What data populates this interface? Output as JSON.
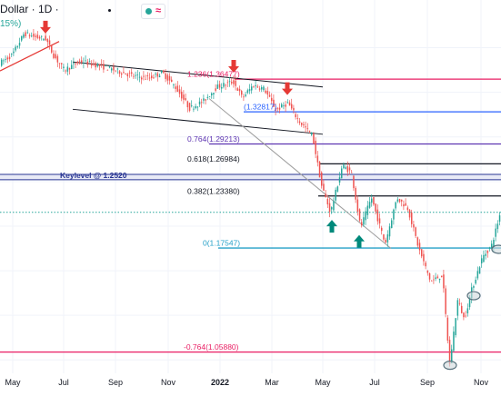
{
  "header": {
    "symbol_interval": "Dollar · 1D ·",
    "change_fragment": "15%)",
    "badge_icon": "wave-icon",
    "badge_symbol": "≈"
  },
  "chart_data": {
    "type": "candlestick",
    "x_axis_labels": [
      "May",
      "Jul",
      "Sep",
      "Nov",
      "2022",
      "Mar",
      "May",
      "Jul",
      "Sep",
      "Nov"
    ],
    "y_range": [
      1.035,
      1.425
    ],
    "price_path": [
      {
        "t": 0,
        "price": 1.382
      },
      {
        "t": 15,
        "price": 1.392
      },
      {
        "t": 28,
        "price": 1.416
      },
      {
        "t": 40,
        "price": 1.412
      },
      {
        "t": 52,
        "price": 1.41
      },
      {
        "t": 60,
        "price": 1.392
      },
      {
        "t": 72,
        "price": 1.375
      },
      {
        "t": 90,
        "price": 1.385
      },
      {
        "t": 110,
        "price": 1.38
      },
      {
        "t": 130,
        "price": 1.374
      },
      {
        "t": 150,
        "price": 1.368
      },
      {
        "t": 165,
        "price": 1.366
      },
      {
        "t": 180,
        "price": 1.372
      },
      {
        "t": 195,
        "price": 1.355
      },
      {
        "t": 210,
        "price": 1.332
      },
      {
        "t": 225,
        "price": 1.34
      },
      {
        "t": 240,
        "price": 1.356
      },
      {
        "t": 258,
        "price": 1.362
      },
      {
        "t": 268,
        "price": 1.344
      },
      {
        "t": 280,
        "price": 1.358
      },
      {
        "t": 292,
        "price": 1.354
      },
      {
        "t": 305,
        "price": 1.33
      },
      {
        "t": 318,
        "price": 1.338
      },
      {
        "t": 330,
        "price": 1.318
      },
      {
        "t": 345,
        "price": 1.302
      },
      {
        "t": 355,
        "price": 1.246
      },
      {
        "t": 365,
        "price": 1.215
      },
      {
        "t": 378,
        "price": 1.268
      },
      {
        "t": 388,
        "price": 1.26
      },
      {
        "t": 398,
        "price": 1.198
      },
      {
        "t": 410,
        "price": 1.232
      },
      {
        "t": 425,
        "price": 1.18
      },
      {
        "t": 438,
        "price": 1.232
      },
      {
        "t": 450,
        "price": 1.22
      },
      {
        "t": 462,
        "price": 1.175
      },
      {
        "t": 475,
        "price": 1.138
      },
      {
        "t": 488,
        "price": 1.145
      },
      {
        "t": 496,
        "price": 1.045
      },
      {
        "t": 505,
        "price": 1.118
      },
      {
        "t": 512,
        "price": 1.095
      },
      {
        "t": 520,
        "price": 1.128
      },
      {
        "t": 532,
        "price": 1.165
      },
      {
        "t": 542,
        "price": 1.178
      },
      {
        "t": 551,
        "price": 1.212
      }
    ],
    "fibonacci_levels": [
      {
        "label": "1.236(1.36477)",
        "value": 1.36477,
        "color": "#e91e63"
      },
      {
        "label": "(1.32817)",
        "value": 1.32817,
        "color": "#2962ff"
      },
      {
        "label": "0.764(1.29213)",
        "value": 1.29213,
        "color": "#5e35b1"
      },
      {
        "label": "0.618(1.26984)",
        "value": 1.26984,
        "color": "#131722"
      },
      {
        "label": "0.382(1.23380)",
        "value": 1.2338,
        "color": "#131722"
      },
      {
        "label": "0(1.17547)",
        "value": 1.17547,
        "color": "#26a0c8"
      },
      {
        "label": "-0.764(1.05880)",
        "value": 1.0588,
        "color": "#e91e63"
      }
    ],
    "keylevel": {
      "label": "Keylevel @ 1.2520",
      "value": 1.252,
      "band_upper": 1.258,
      "color": "#283593"
    },
    "dotted_level": {
      "value": 1.2155,
      "color": "#26a69a"
    },
    "channel_lines": [
      {
        "from": {
          "t": 80,
          "price": 1.384
        },
        "to": {
          "t": 355,
          "price": 1.356
        },
        "color": "#131722"
      },
      {
        "from": {
          "t": 80,
          "price": 1.331
        },
        "to": {
          "t": 355,
          "price": 1.303
        },
        "color": "#131722"
      },
      {
        "from": {
          "t": 230,
          "price": 1.343
        },
        "to": {
          "t": 430,
          "price": 1.175
        },
        "color": "#9e9e9e"
      }
    ],
    "support_line": {
      "from": {
        "t": 0,
        "price": 1.374
      },
      "to": {
        "t": 65,
        "price": 1.407
      },
      "color": "#e53935"
    },
    "markers": [
      {
        "type": "arrow-down",
        "t": 50,
        "price": 1.416,
        "color": "#e53935"
      },
      {
        "type": "arrow-down",
        "t": 257,
        "price": 1.372,
        "color": "#e53935"
      },
      {
        "type": "arrow-down",
        "t": 316,
        "price": 1.347,
        "color": "#e53935"
      },
      {
        "type": "arrow-up",
        "t": 365,
        "price": 1.207,
        "color": "#00897b"
      },
      {
        "type": "arrow-up",
        "t": 395,
        "price": 1.19,
        "color": "#00897b"
      },
      {
        "type": "ellipse",
        "t": 548,
        "price": 1.174,
        "color": "#546e7a"
      },
      {
        "type": "ellipse",
        "t": 521,
        "price": 1.122,
        "color": "#546e7a"
      },
      {
        "type": "ellipse",
        "t": 495,
        "price": 1.044,
        "color": "#546e7a"
      }
    ],
    "up_color": "#26a69a",
    "down_color": "#ef5350",
    "grid": true
  }
}
